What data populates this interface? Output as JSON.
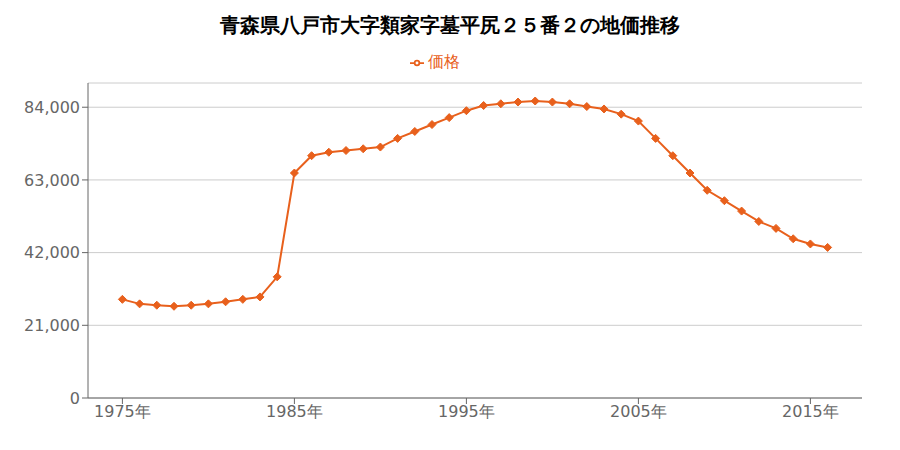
{
  "chart_data": {
    "type": "line",
    "title": "青森県八戸市大字類家字墓平尻２５番２の地価推移",
    "x": [
      1975,
      1976,
      1977,
      1978,
      1979,
      1980,
      1981,
      1982,
      1983,
      1984,
      1985,
      1986,
      1987,
      1988,
      1989,
      1990,
      1991,
      1992,
      1993,
      1994,
      1995,
      1996,
      1997,
      1998,
      1999,
      2000,
      2001,
      2002,
      2003,
      2004,
      2005,
      2006,
      2007,
      2008,
      2009,
      2010,
      2011,
      2012,
      2013,
      2014,
      2015,
      2016
    ],
    "series": [
      {
        "name": "価格",
        "color": "#e8601c",
        "marker": "diamond",
        "values": [
          28500,
          27200,
          26800,
          26500,
          26800,
          27200,
          27800,
          28500,
          29200,
          35000,
          65000,
          70000,
          71000,
          71500,
          72000,
          72500,
          75000,
          77000,
          79000,
          81000,
          83000,
          84500,
          85000,
          85500,
          85800,
          85500,
          85000,
          84200,
          83500,
          82000,
          80000,
          75000,
          70000,
          65000,
          60000,
          57000,
          54000,
          51000,
          49000,
          46000,
          44500,
          43500
        ]
      }
    ],
    "xlim": [
      1973,
      2018
    ],
    "xticks": [
      {
        "value": 1975,
        "label": "1975年"
      },
      {
        "value": 1985,
        "label": "1985年"
      },
      {
        "value": 1995,
        "label": "1995年"
      },
      {
        "value": 2005,
        "label": "2005年"
      },
      {
        "value": 2015,
        "label": "2015年"
      }
    ],
    "ylim": [
      0,
      91000
    ],
    "yticks": [
      0,
      {
        "value": 21000,
        "label": "21,000"
      },
      {
        "value": 42000,
        "label": "42,000"
      },
      {
        "value": 63000,
        "label": "63,000"
      },
      {
        "value": 84000,
        "label": "84,000"
      }
    ],
    "grid": "y",
    "legend": "top"
  }
}
